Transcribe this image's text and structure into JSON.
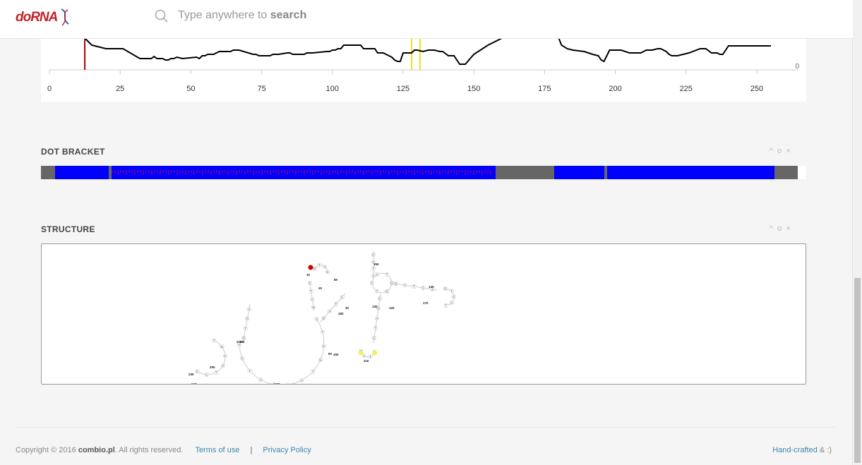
{
  "header": {
    "logo_text": "doRNA",
    "search_placeholder_prefix": "Type anywhere to ",
    "search_placeholder_bold": "search"
  },
  "chart_data": {
    "type": "line",
    "x_ticks": [
      "0",
      "25",
      "50",
      "75",
      "100",
      "125",
      "150",
      "175",
      "200",
      "225",
      "250"
    ],
    "xlim": [
      0,
      257
    ],
    "y_right_label": "0",
    "series": [
      {
        "color": "#000000",
        "x": [
          10,
          15,
          16,
          20,
          25,
          26,
          32,
          35,
          36,
          37,
          38,
          40,
          41,
          42,
          43,
          44,
          45,
          47,
          52,
          53,
          54,
          55,
          56,
          58,
          60,
          64,
          65,
          67,
          72,
          73,
          74,
          78,
          79,
          81,
          84,
          85,
          86,
          90,
          91,
          93,
          98,
          99,
          100,
          101,
          102,
          103,
          104,
          105,
          106,
          110,
          111,
          115,
          116,
          118,
          119,
          120,
          121,
          122,
          123,
          124,
          125,
          126,
          128,
          129,
          130,
          132,
          134,
          136,
          138,
          139,
          141,
          143,
          145,
          147,
          150,
          155,
          160,
          165,
          170,
          175,
          180,
          181,
          183,
          185,
          189,
          192,
          194,
          195,
          196,
          197,
          198,
          202,
          205,
          209,
          211,
          213,
          215,
          216,
          218,
          219,
          220,
          222,
          226,
          230,
          232,
          234,
          236,
          237,
          238,
          240,
          245,
          250,
          255
        ],
        "y": [
          -55,
          -35,
          -34,
          -30,
          -30,
          -30,
          -16,
          -16,
          -16,
          -19,
          -16,
          -16,
          -14,
          -14,
          -16,
          -16,
          -18,
          -16,
          -18,
          -16,
          -20,
          -20,
          -22,
          -22,
          -26,
          -26,
          -28,
          -28,
          -22,
          -22,
          -20,
          -20,
          -22,
          -22,
          -24,
          -24,
          -22,
          -22,
          -24,
          -24,
          -26,
          -26,
          -28,
          -28,
          -30,
          -30,
          -35,
          -35,
          -35,
          -35,
          -30,
          -30,
          -24,
          -24,
          -22,
          -20,
          -18,
          -14,
          -12,
          -12,
          -24,
          -24,
          -24,
          -28,
          -28,
          -26,
          -28,
          -28,
          -26,
          -26,
          -20,
          -20,
          -8,
          -8,
          -22,
          -35,
          -45,
          -55,
          -60,
          -55,
          -45,
          -35,
          -30,
          -28,
          -26,
          -22,
          -20,
          -14,
          -12,
          -20,
          -28,
          -28,
          -24,
          -24,
          -28,
          -28,
          -30,
          -30,
          -26,
          -22,
          -20,
          -20,
          -24,
          -30,
          -30,
          -24,
          -24,
          -22,
          -22,
          -34,
          -34,
          -34,
          -34
        ]
      }
    ],
    "markers": [
      {
        "x": 12.5,
        "color": "#aa0000"
      },
      {
        "x": 128,
        "color": "#f0e020"
      },
      {
        "x": 131,
        "color": "#f0e020"
      }
    ]
  },
  "dot_bracket": {
    "title": "DOT BRACKET",
    "segments": [
      {
        "color": "#666666",
        "from": 0,
        "to": 20
      },
      {
        "color": "#0000ff",
        "from": 20,
        "to": 96
      },
      {
        "color": "#666666",
        "from": 96,
        "to": 100
      },
      {
        "color": "#0000ff",
        "from": 100,
        "to": 644
      },
      {
        "color": "#666666",
        "from": 644,
        "to": 727
      },
      {
        "color": "#0000ff",
        "from": 727,
        "to": 798
      },
      {
        "color": "#666666",
        "from": 798,
        "to": 802
      },
      {
        "color": "#0000ff",
        "from": 802,
        "to": 1039
      },
      {
        "color": "#666666",
        "from": 1039,
        "to": 1072
      }
    ]
  },
  "structure": {
    "title": "STRUCTURE",
    "nucleotide_labels": [
      "A",
      "T",
      "C",
      "G",
      "T",
      "A",
      "C",
      "G",
      "A",
      "T",
      "C",
      "A",
      "G",
      "T",
      "C",
      "A",
      "T",
      "G",
      "C",
      "A",
      "T",
      "A",
      "C",
      "G"
    ],
    "index_labels": [
      "10",
      "20",
      "30",
      "80",
      "90",
      "100",
      "110",
      "120",
      "130",
      "140",
      "150",
      "160",
      "170",
      "180",
      "190",
      "200",
      "210",
      "240",
      "248",
      "250"
    ]
  },
  "panel_controls": {
    "collapse": "^",
    "settings": "o",
    "close": "×"
  },
  "footer": {
    "copyright_prefix": "Copyright © 2016 ",
    "company": "combio.pl",
    "copyright_suffix": ". All rights reserved.",
    "terms": "Terms of use",
    "separator": "|",
    "privacy": "Privacy Policy",
    "handcrafted": "Hand-crafted",
    "handcrafted_suffix": " & :)"
  }
}
